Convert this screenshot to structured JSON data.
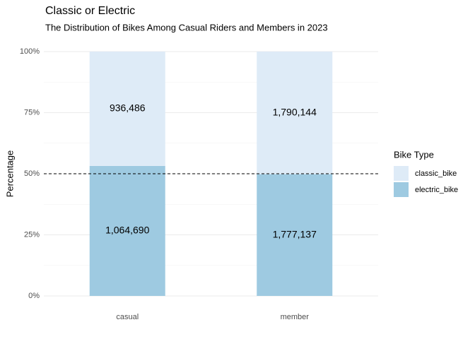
{
  "chart_data": {
    "type": "bar",
    "stack": "percent",
    "title": "Classic or Electric",
    "subtitle": "The Distribution of Bikes Among Casual Riders and Members in 2023",
    "y_label": "Percentage",
    "legend_title": "Bike Type",
    "legend": "right",
    "grid": true,
    "categories": [
      "casual",
      "member"
    ],
    "series": [
      {
        "name": "classic_bike",
        "color": "#deebf7",
        "values": [
          936486,
          1790144
        ],
        "value_labels": [
          "936,486",
          "1,790,144"
        ]
      },
      {
        "name": "electric_bike",
        "color": "#9ecae1",
        "values": [
          1064690,
          1777137
        ],
        "value_labels": [
          "1,064,690",
          "1,777,137"
        ]
      }
    ],
    "ylim": [
      0,
      100
    ],
    "yticks": [
      {
        "value": 0,
        "label": "0%"
      },
      {
        "value": 25,
        "label": "25%"
      },
      {
        "value": 50,
        "label": "50%"
      },
      {
        "value": 75,
        "label": "75%"
      },
      {
        "value": 100,
        "label": "100%"
      }
    ],
    "hline": 50
  }
}
